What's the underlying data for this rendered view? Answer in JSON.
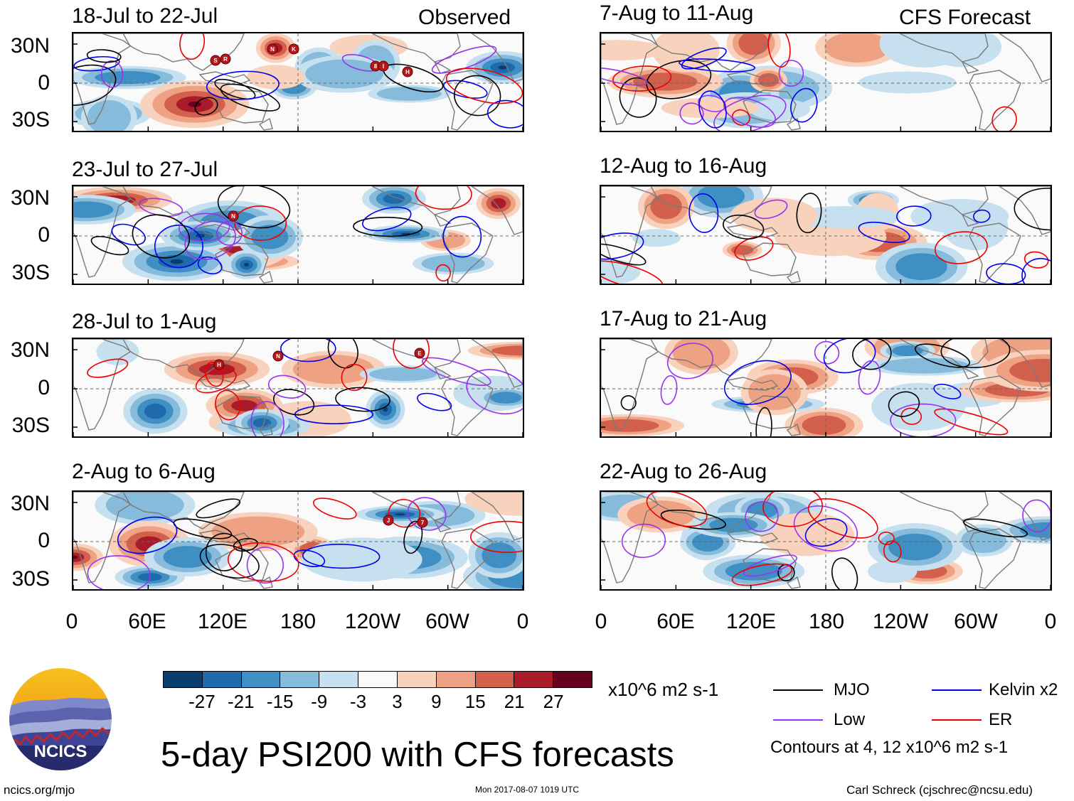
{
  "header": {
    "observed_label": "Observed",
    "forecast_label": "CFS Forecast"
  },
  "observed_panels": [
    {
      "title": "18-Jul to 22-Jul"
    },
    {
      "title": "23-Jul to 27-Jul"
    },
    {
      "title": "28-Jul to 1-Aug"
    },
    {
      "title": "2-Aug to 6-Aug"
    }
  ],
  "forecast_panels": [
    {
      "title": "7-Aug to 11-Aug"
    },
    {
      "title": "12-Aug to 16-Aug"
    },
    {
      "title": "17-Aug to 21-Aug"
    },
    {
      "title": "22-Aug to 26-Aug"
    }
  ],
  "lat_labels": [
    "30N",
    "0",
    "30S"
  ],
  "lon_labels": [
    "0",
    "60E",
    "120E",
    "180",
    "120W",
    "60W",
    "0"
  ],
  "storm_markers": {
    "p0": [
      "S",
      "R",
      "N",
      "K",
      "8",
      "I",
      "H"
    ],
    "p1": [
      "N"
    ],
    "p2": [
      "H",
      "N",
      "E"
    ],
    "p3": [
      "J",
      "7"
    ]
  },
  "colorbar": {
    "colors": [
      "#0b3c6e",
      "#1f6aab",
      "#3f8fc4",
      "#86bbdb",
      "#c7e0ef",
      "#fafafa",
      "#f9d2bd",
      "#eea283",
      "#d2604c",
      "#aa1b2a",
      "#67001f"
    ],
    "labels": [
      "-27",
      "-21",
      "-15",
      "-9",
      "-3",
      "3",
      "9",
      "15",
      "21",
      "27"
    ],
    "units": "x10^6 m2 s-1"
  },
  "legend": {
    "items": [
      {
        "label": "MJO",
        "color": "#000000"
      },
      {
        "label": "Kelvin x2",
        "color": "#0000ee"
      },
      {
        "label": "Low",
        "color": "#9933ee"
      },
      {
        "label": "ER",
        "color": "#ee0000"
      }
    ],
    "contours_note": "Contours at 4, 12 x10^6 m2 s-1"
  },
  "logo": {
    "text": "NCICS"
  },
  "main_title": "5-day PSI200 with CFS forecasts",
  "footer": {
    "url": "ncics.org/mjo",
    "timestamp": "Mon 2017-08-07 1019 UTC",
    "credit": "Carl Schreck (cjschrec@ncsu.edu)"
  }
}
